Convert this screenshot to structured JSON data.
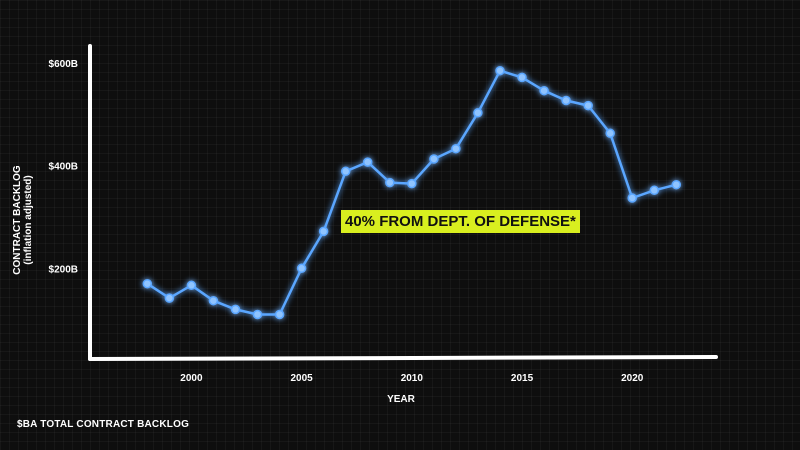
{
  "chart_data": {
    "type": "line",
    "title": "",
    "xlabel": "YEAR",
    "ylabel": "CONTRACT BACKLOG",
    "ylabel_sub": "(inflation adjusted)",
    "x": [
      1998,
      1999,
      2000,
      2001,
      2002,
      2003,
      2004,
      2005,
      2006,
      2007,
      2008,
      2009,
      2010,
      2011,
      2012,
      2013,
      2014,
      2015,
      2016,
      2017,
      2018,
      2019,
      2020,
      2021,
      2022
    ],
    "series": [
      {
        "values": [
          170,
          142,
          167,
          137,
          120,
          110,
          110,
          200,
          272,
          389,
          407,
          367,
          365,
          413,
          433,
          503,
          585,
          572,
          546,
          527,
          517,
          463,
          337,
          352,
          363
        ]
      }
    ],
    "xticks": [
      2000,
      2005,
      2010,
      2015,
      2020
    ],
    "xtick_labels": [
      "2000",
      "2005",
      "2010",
      "2015",
      "2020"
    ],
    "yticks": [
      200,
      400,
      600
    ],
    "ytick_labels": [
      "$200B",
      "$400B",
      "$600B"
    ],
    "xlim": [
      1995.4,
      2023.8
    ],
    "ylim": [
      0,
      600
    ],
    "grid": false,
    "legend": "none",
    "line_color": "#5aa6ff",
    "annotation": "40% FROM DEPT. OF DEFENSE*",
    "annotation_bg": "#d9ef1f"
  },
  "footnote": "$BA TOTAL CONTRACT BACKLOG"
}
